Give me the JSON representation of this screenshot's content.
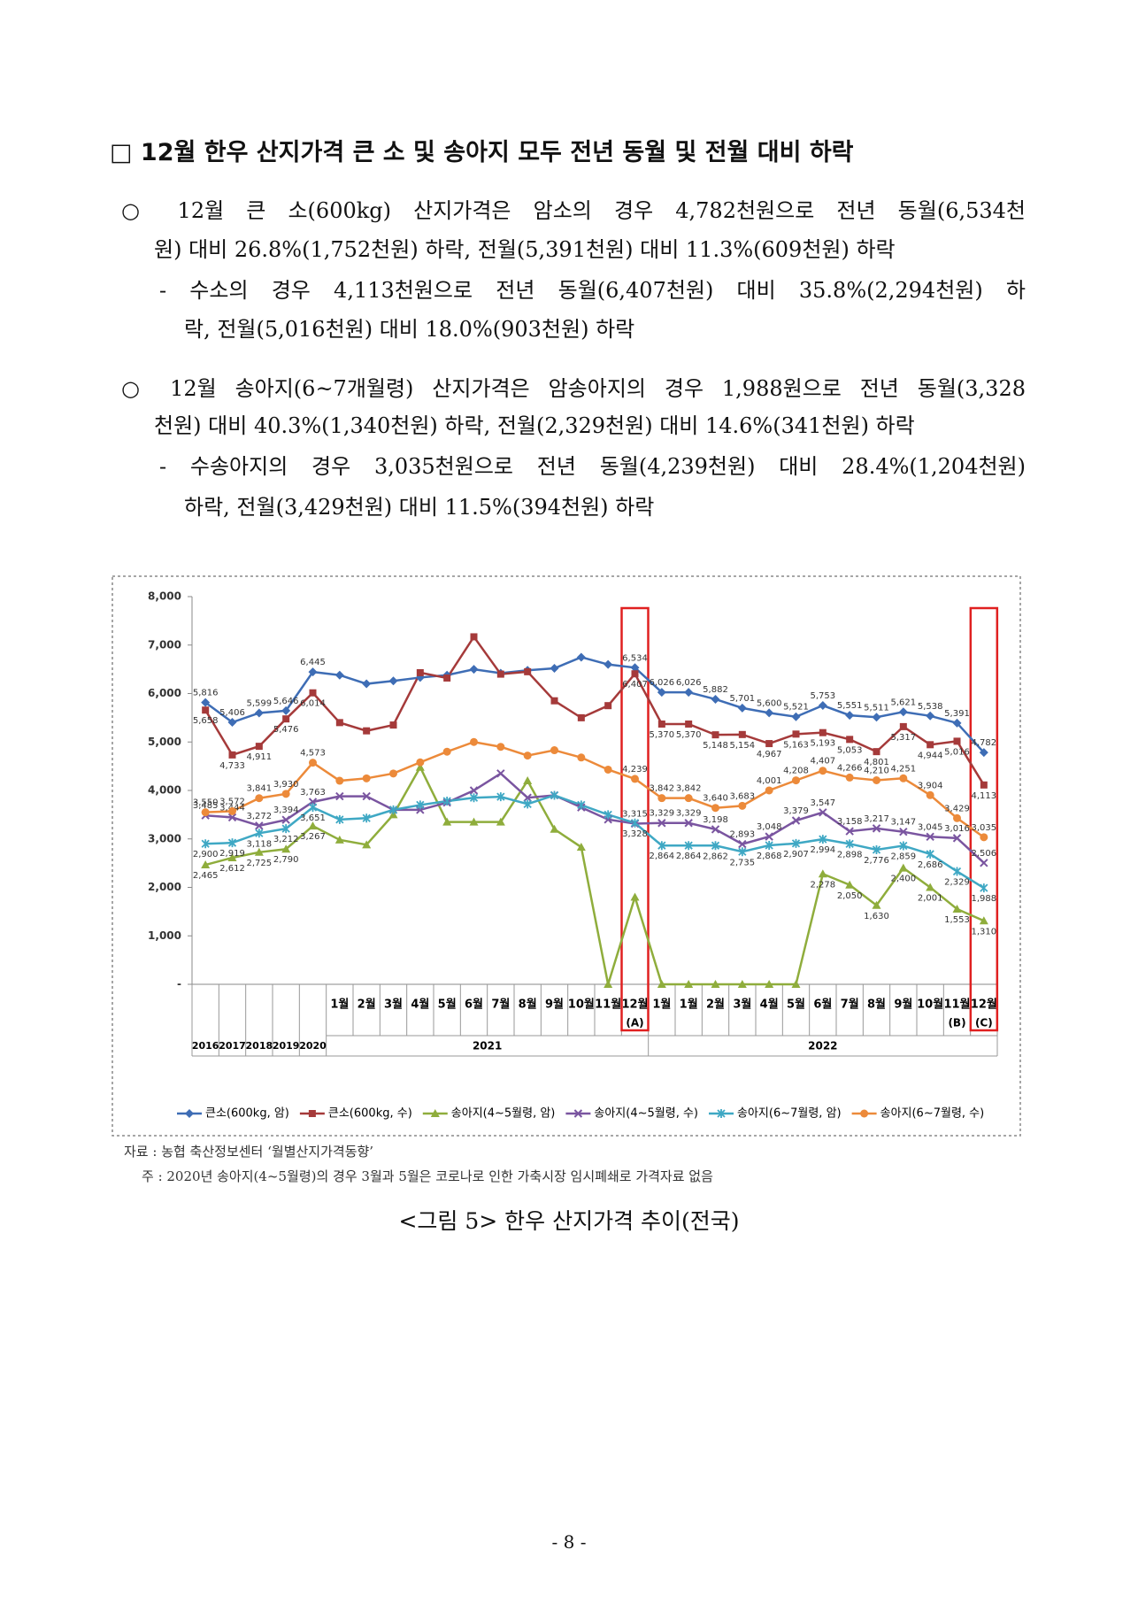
{
  "heading": "□ 12월 한우 산지가격 큰 소 및 송아지 모두 전년 동월 및 전월 대비 하락",
  "lines": [
    "○ 12월 큰 소(600kg) 산지가격은 암소의 경우 4,782천원으로 전년 동월(6,534천",
    "원) 대비 26.8%(1,752천원) 하락, 전월(5,391천원) 대비 11.3%(609천원) 하락",
    "- 수소의 경우 4,113천원으로 전년 동월(6,407천원) 대비 35.8%(2,294천원) 하",
    "락, 전월(5,016천원) 대비 18.0%(903천원) 하락",
    "○ 12월 송아지(6~7개월령) 산지가격은 암송아지의 경우 1,988원으로 전년 동월(3,328",
    "천원) 대비 40.3%(1,340천원) 하락, 전월(2,329천원) 대비 14.6%(341천원) 하락",
    "- 수송아지의 경우 3,035천원으로 전년 동월(4,239천원) 대비 28.4%(1,204천원)",
    "하락, 전월(3,429천원) 대비 11.5%(394천원) 하락"
  ],
  "chart_data": {
    "type": "line",
    "categories": [
      "2016",
      "2017",
      "2018",
      "2019",
      "2020",
      "1월",
      "2월",
      "3월",
      "4월",
      "5월",
      "6월",
      "7월",
      "8월",
      "9월",
      "10월",
      "11월",
      "12월",
      "1월",
      "1월",
      "2월",
      "3월",
      "4월",
      "5월",
      "6월",
      "7월",
      "8월",
      "9월",
      "10월",
      "11월",
      "12월"
    ],
    "category_notes": [
      null,
      null,
      null,
      null,
      null,
      null,
      null,
      null,
      null,
      null,
      null,
      null,
      null,
      null,
      null,
      null,
      "(A)",
      null,
      null,
      null,
      null,
      null,
      null,
      null,
      null,
      null,
      null,
      null,
      "(B)",
      "(C)"
    ],
    "groups": [
      {
        "label": "2021",
        "from": 5,
        "to": 16
      },
      {
        "label": "2022",
        "from": 17,
        "to": 29
      }
    ],
    "ylim": [
      0,
      8000
    ],
    "yticks": [
      {
        "value": 0,
        "label": "-"
      },
      {
        "value": 1000,
        "label": "1,000"
      },
      {
        "value": 2000,
        "label": "2,000"
      },
      {
        "value": 3000,
        "label": "3,000"
      },
      {
        "value": 4000,
        "label": "4,000"
      },
      {
        "value": 5000,
        "label": "5,000"
      },
      {
        "value": 6000,
        "label": "6,000"
      },
      {
        "value": 7000,
        "label": "7,000"
      },
      {
        "value": 8000,
        "label": "8,000"
      }
    ],
    "grid": false,
    "series": [
      {
        "name": "큰소(600kg, 암)",
        "color": "#3e6db5",
        "marker": "diamond",
        "values": [
          5816,
          5406,
          5599,
          5646,
          6445,
          6380,
          6200,
          6260,
          6330,
          6380,
          6500,
          6420,
          6480,
          6520,
          6750,
          6600,
          6534,
          6026,
          6026,
          5882,
          5701,
          5600,
          5521,
          5753,
          5551,
          5511,
          5621,
          5538,
          5391,
          4782
        ],
        "value_labels": [
          "5,816",
          "5,406",
          "5,599",
          "5,646",
          "6,445",
          null,
          null,
          null,
          null,
          null,
          null,
          null,
          null,
          null,
          null,
          null,
          "6,534",
          "6,026",
          "6,026",
          "5,882",
          "5,701",
          "5,600",
          "5,521",
          "5,753",
          "5,551",
          "5,511",
          "5,621",
          "5,538",
          "5,391",
          "4,782"
        ]
      },
      {
        "name": "큰소(600kg, 수)",
        "color": "#a53a3a",
        "marker": "square",
        "values": [
          5658,
          4733,
          4911,
          5476,
          6014,
          5400,
          5230,
          5350,
          6430,
          6320,
          7170,
          6400,
          6450,
          5850,
          5500,
          5750,
          6407,
          5370,
          5370,
          5148,
          5154,
          4967,
          5163,
          5193,
          5053,
          4801,
          5317,
          4944,
          5016,
          4113
        ],
        "value_labels": [
          "5,658",
          "4,733",
          "4,911",
          "5,476",
          "6,014",
          null,
          null,
          null,
          null,
          null,
          null,
          null,
          null,
          null,
          null,
          null,
          "6,407",
          "5,370",
          "5,370",
          "5,148",
          "5,154",
          "4,967",
          "5,163",
          "5,193",
          "5,053",
          "4,801",
          "5,317",
          "4,944",
          "5,016",
          "4,113"
        ]
      },
      {
        "name": "송아지(4~5월령, 암)",
        "color": "#8fad3c",
        "marker": "triangle",
        "values": [
          2465,
          2612,
          2725,
          2790,
          3267,
          2980,
          2880,
          3500,
          4480,
          3350,
          3350,
          3350,
          4200,
          3200,
          2830,
          0,
          1800,
          0,
          0,
          0,
          0,
          0,
          0,
          2278,
          2050,
          1630,
          2400,
          2001,
          1553,
          1310
        ],
        "value_labels": [
          "2,465",
          "2,612",
          "2,725",
          "2,790",
          "3,267",
          null,
          null,
          null,
          null,
          null,
          null,
          null,
          null,
          null,
          null,
          null,
          null,
          null,
          null,
          null,
          null,
          null,
          null,
          "2,278",
          "2,050",
          "1,630",
          "2,400",
          "2,001",
          "1,553",
          "1,310"
        ]
      },
      {
        "name": "송아지(4~5월령, 수)",
        "color": "#7a55a0",
        "marker": "x",
        "values": [
          3485,
          3444,
          3272,
          3394,
          3763,
          3880,
          3880,
          3600,
          3600,
          3750,
          4000,
          4350,
          3850,
          3900,
          3650,
          3400,
          3315,
          3329,
          3329,
          3198,
          2893,
          3048,
          3379,
          3547,
          3158,
          3217,
          3147,
          3045,
          3016,
          2506
        ],
        "value_labels": [
          "3,485",
          "3,444",
          "3,272",
          "3,394",
          "3,763",
          null,
          null,
          null,
          null,
          null,
          null,
          null,
          null,
          null,
          null,
          null,
          "3,315",
          "3,329",
          "3,329",
          "3,198",
          "2,893",
          "3,048",
          "3,379",
          "3,547",
          "3,158",
          "3,217",
          "3,147",
          "3,045",
          "3,016",
          "2,506"
        ]
      },
      {
        "name": "송아지(6~7월령, 암)",
        "color": "#3fa8c4",
        "marker": "star",
        "values": [
          2900,
          2919,
          3118,
          3212,
          3651,
          3400,
          3430,
          3600,
          3700,
          3780,
          3850,
          3870,
          3720,
          3900,
          3700,
          3500,
          3328,
          2864,
          2864,
          2862,
          2735,
          2868,
          2907,
          2994,
          2898,
          2776,
          2859,
          2686,
          2329,
          1988
        ],
        "value_labels": [
          "2,900",
          "2,919",
          "3,118",
          "3,212",
          "3,651",
          null,
          null,
          null,
          null,
          null,
          null,
          null,
          null,
          null,
          null,
          null,
          "3,328",
          "2,864",
          "2,864",
          "2,862",
          "2,735",
          "2,868",
          "2,907",
          "2,994",
          "2,898",
          "2,776",
          "2,859",
          "2,686",
          "2,329",
          "1,988"
        ]
      },
      {
        "name": "송아지(6~7월령, 수)",
        "color": "#ec8a3a",
        "marker": "circle",
        "values": [
          3550,
          3572,
          3841,
          3930,
          4573,
          4200,
          4250,
          4350,
          4580,
          4800,
          5000,
          4900,
          4720,
          4830,
          4680,
          4430,
          4239,
          3842,
          3842,
          3640,
          3683,
          4001,
          4208,
          4407,
          4266,
          4210,
          4251,
          3904,
          3429,
          3035
        ],
        "value_labels": [
          "3,550",
          "3,572",
          "3,841",
          "3,930",
          "4,573",
          null,
          null,
          null,
          null,
          null,
          null,
          null,
          null,
          null,
          null,
          null,
          "4,239",
          "3,842",
          "3,842",
          "3,640",
          "3,683",
          "4,001",
          "4,208",
          "4,407",
          "4,266",
          "4,210",
          "4,251",
          "3,904",
          "3,429",
          "3,035"
        ]
      }
    ]
  },
  "source": "자료 : 농협 축산정보센터 ‘월별산지가격동향’",
  "note": "주 : 2020년 송아지(4~5월령)의 경우 3월과 5월은 코로나로 인한 가축시장 임시폐쇄로 가격자료 없음",
  "caption": "<그림 5> 한우 산지가격 추이(전국)",
  "page_number": "- 8 -"
}
